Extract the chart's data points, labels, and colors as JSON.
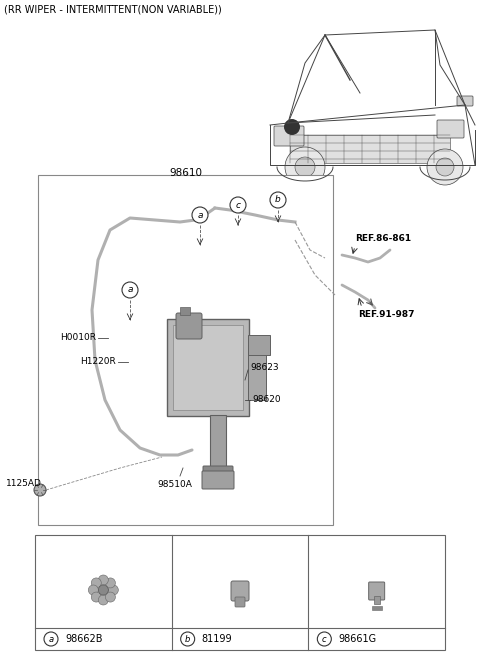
{
  "title": "(RR WIPER - INTERMITTENT(NON VARIABLE))",
  "bg_color": "#ffffff",
  "fig_width": 4.8,
  "fig_height": 6.57,
  "dpi": 100,
  "part_label_98610": "98610",
  "part_label_98623": "98623",
  "part_label_98620": "98620",
  "part_label_98510A": "98510A",
  "part_label_H0010R": "H0010R",
  "part_label_H1220R": "H1220R",
  "part_label_1125AD": "1125AD",
  "ref_86_861": "REF.86-861",
  "ref_91_987": "REF.91-987",
  "table_a_code": "98662B",
  "table_b_code": "81199",
  "table_c_code": "98661G",
  "text_color": "#000000",
  "line_color": "#aaaaaa",
  "part_color": "#999999",
  "ref_color": "#000000"
}
